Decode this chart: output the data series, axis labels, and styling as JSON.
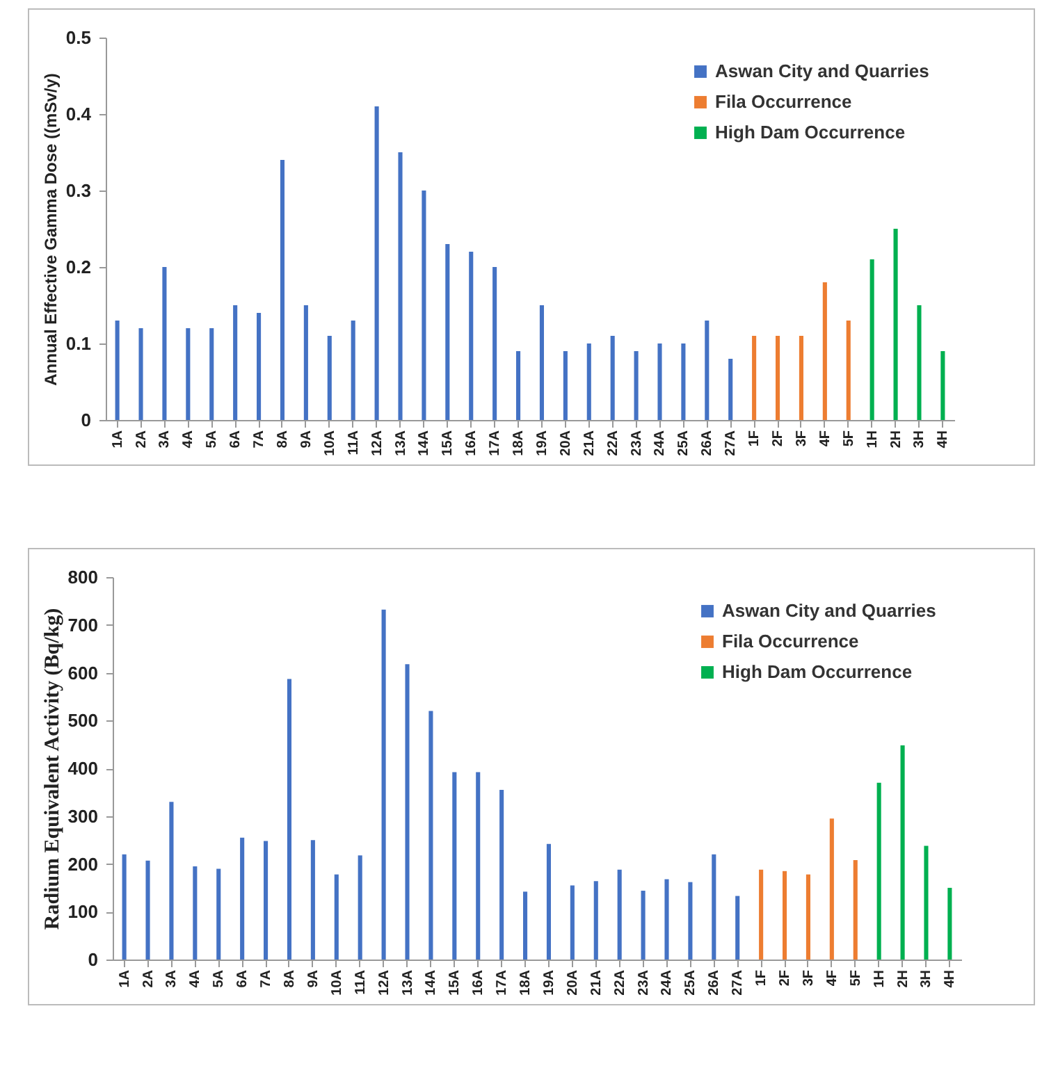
{
  "chart_data": [
    {
      "type": "bar",
      "ylabel": "Annual Effective Gamma Dose ((mSv/y)",
      "categories": [
        "1A",
        "2A",
        "3A",
        "4A",
        "5A",
        "6A",
        "7A",
        "8A",
        "9A",
        "10A",
        "11A",
        "12A",
        "13A",
        "14A",
        "15A",
        "16A",
        "17A",
        "18A",
        "19A",
        "20A",
        "21A",
        "22A",
        "23A",
        "24A",
        "25A",
        "26A",
        "27A",
        "1F",
        "2F",
        "3F",
        "4F",
        "5F",
        "1H",
        "2H",
        "3H",
        "4H"
      ],
      "series": [
        {
          "name": "Aswan City and Quarries",
          "color": "#4472c4",
          "values": [
            0.13,
            0.12,
            0.2,
            0.12,
            0.12,
            0.15,
            0.14,
            0.34,
            0.15,
            0.11,
            0.13,
            0.41,
            0.35,
            0.3,
            0.23,
            0.22,
            0.2,
            0.09,
            0.15,
            0.09,
            0.1,
            0.11,
            0.09,
            0.1,
            0.1,
            0.13,
            0.08,
            null,
            null,
            null,
            null,
            null,
            null,
            null,
            null,
            null
          ]
        },
        {
          "name": "Fila Occurrence",
          "color": "#ed7d31",
          "values": [
            null,
            null,
            null,
            null,
            null,
            null,
            null,
            null,
            null,
            null,
            null,
            null,
            null,
            null,
            null,
            null,
            null,
            null,
            null,
            null,
            null,
            null,
            null,
            null,
            null,
            null,
            null,
            0.11,
            0.11,
            0.11,
            0.18,
            0.13,
            null,
            null,
            null,
            null
          ]
        },
        {
          "name": "High Dam Occurrence",
          "color": "#00b050",
          "values": [
            null,
            null,
            null,
            null,
            null,
            null,
            null,
            null,
            null,
            null,
            null,
            null,
            null,
            null,
            null,
            null,
            null,
            null,
            null,
            null,
            null,
            null,
            null,
            null,
            null,
            null,
            null,
            null,
            null,
            null,
            null,
            null,
            0.21,
            0.25,
            0.15,
            0.09
          ]
        }
      ],
      "ylim": [
        0,
        0.5
      ],
      "yticks": [
        0,
        0.1,
        0.2,
        0.3,
        0.4,
        0.5
      ],
      "grid": false,
      "legend": "top right"
    },
    {
      "type": "bar",
      "ylabel": "Radium Equivalent Activity (Bq/kg)",
      "categories": [
        "1A",
        "2A",
        "3A",
        "4A",
        "5A",
        "6A",
        "7A",
        "8A",
        "9A",
        "10A",
        "11A",
        "12A",
        "13A",
        "14A",
        "15A",
        "16A",
        "17A",
        "18A",
        "19A",
        "20A",
        "21A",
        "22A",
        "23A",
        "24A",
        "25A",
        "26A",
        "27A",
        "1F",
        "2F",
        "3F",
        "4F",
        "5F",
        "1H",
        "2H",
        "3H",
        "4H"
      ],
      "series": [
        {
          "name": "Aswan City and Quarries",
          "color": "#4472c4",
          "values": [
            220,
            207,
            330,
            195,
            190,
            255,
            248,
            587,
            250,
            178,
            218,
            732,
            618,
            520,
            392,
            392,
            355,
            142,
            242,
            155,
            164,
            188,
            144,
            168,
            162,
            220,
            133,
            null,
            null,
            null,
            null,
            null,
            null,
            null,
            null,
            null
          ]
        },
        {
          "name": "Fila Occurrence",
          "color": "#ed7d31",
          "values": [
            null,
            null,
            null,
            null,
            null,
            null,
            null,
            null,
            null,
            null,
            null,
            null,
            null,
            null,
            null,
            null,
            null,
            null,
            null,
            null,
            null,
            null,
            null,
            null,
            null,
            null,
            null,
            188,
            185,
            178,
            295,
            208,
            null,
            null,
            null,
            null
          ]
        },
        {
          "name": "High Dam Occurrence",
          "color": "#00b050",
          "values": [
            null,
            null,
            null,
            null,
            null,
            null,
            null,
            null,
            null,
            null,
            null,
            null,
            null,
            null,
            null,
            null,
            null,
            null,
            null,
            null,
            null,
            null,
            null,
            null,
            null,
            null,
            null,
            null,
            null,
            null,
            null,
            null,
            370,
            448,
            238,
            150
          ]
        }
      ],
      "ylim": [
        0,
        800
      ],
      "yticks": [
        0,
        100,
        200,
        300,
        400,
        500,
        600,
        700,
        800
      ],
      "grid": false,
      "legend": "top right"
    }
  ]
}
